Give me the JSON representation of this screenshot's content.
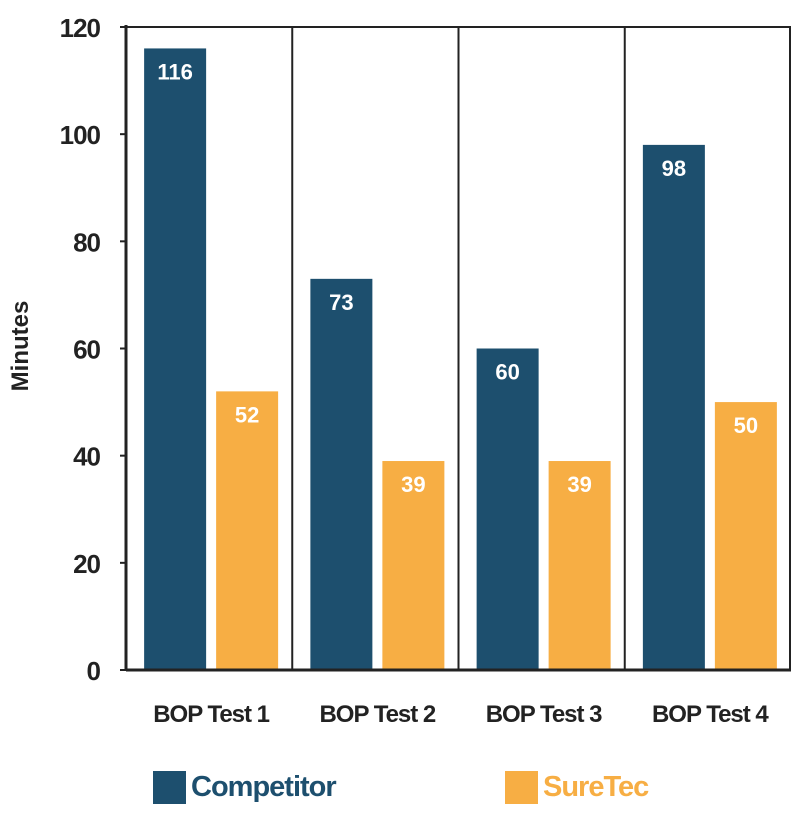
{
  "chart_data": {
    "type": "bar",
    "categories": [
      "BOP Test 1",
      "BOP Test 2",
      "BOP Test 3",
      "BOP Test 4"
    ],
    "series": [
      {
        "name": "Competitor",
        "values": [
          116,
          73,
          60,
          98
        ],
        "color": "#1d4f6e"
      },
      {
        "name": "SureTec",
        "values": [
          52,
          39,
          39,
          50
        ],
        "color": "#f7ae44"
      }
    ],
    "ylabel": "Minutes",
    "xlabel": "",
    "ylim": [
      0,
      120
    ],
    "yticks": [
      0,
      20,
      40,
      60,
      80,
      100,
      120
    ],
    "legend_position": "bottom",
    "data_labels": "inside-top"
  }
}
